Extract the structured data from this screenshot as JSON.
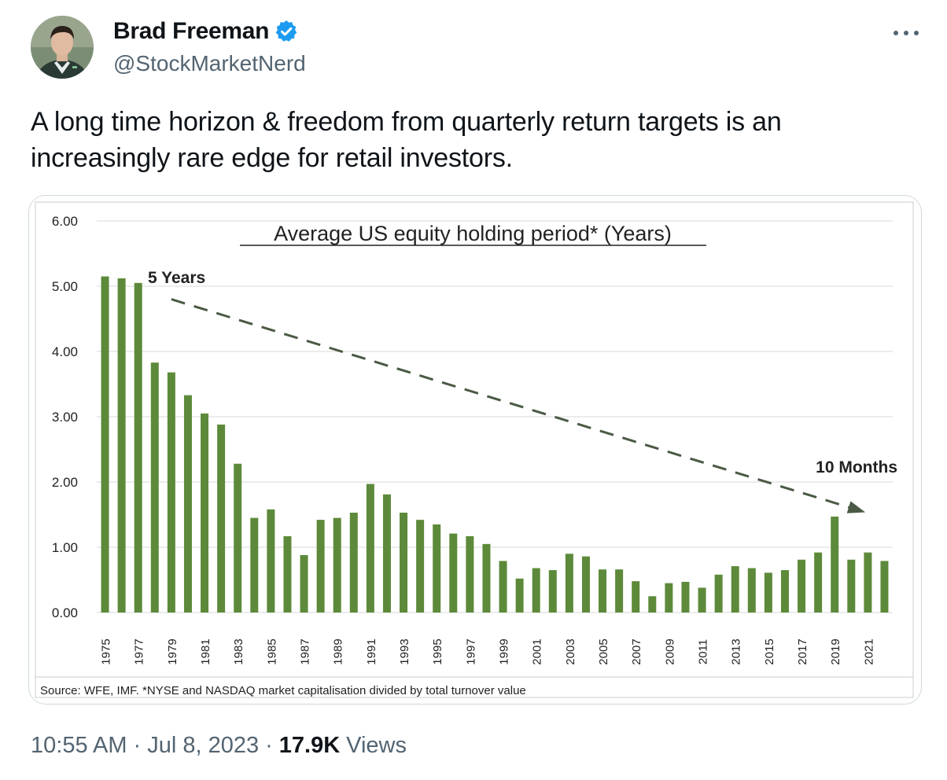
{
  "author": {
    "name": "Brad Freeman",
    "handle": "@StockMarketNerd",
    "verified": true,
    "badge_color": "#1d9bf0"
  },
  "tweet": {
    "text": "A long time horizon & freedom from quarterly return targets is an increasingly rare edge for retail investors.",
    "time": "10:55 AM",
    "date": "Jul 8, 2023",
    "views_count": "17.9K",
    "views_label": "Views",
    "separator": "·"
  },
  "icons": {
    "more": "more-horizontal-icon",
    "verified": "verified-badge-icon"
  },
  "chart_data": {
    "type": "bar",
    "title": "Average US equity holding period* (Years)",
    "source_note": "Source: WFE, IMF. *NYSE and NASDAQ market capitalisation divided by total turnover value",
    "annotations": [
      {
        "text": "5 Years"
      },
      {
        "text": "10 Months"
      }
    ],
    "trend_arrow": {
      "from": {
        "x": 1979,
        "y": 4.8
      },
      "to": {
        "x": 2020,
        "y": 1.55
      }
    },
    "bar_color": "#5d8a3a",
    "ylim": [
      0,
      6
    ],
    "yticks": [
      "0.00",
      "1.00",
      "2.00",
      "3.00",
      "4.00",
      "5.00",
      "6.00"
    ],
    "grid": true,
    "x_tick_labels": [
      "1975",
      "1977",
      "1979",
      "1981",
      "1983",
      "1985",
      "1987",
      "1989",
      "1991",
      "1993",
      "1995",
      "1997",
      "1999",
      "2001",
      "2003",
      "2005",
      "2007",
      "2009",
      "2011",
      "2013",
      "2015",
      "2017",
      "2019",
      "2021"
    ],
    "categories": [
      "1975",
      "1976",
      "1977",
      "1978",
      "1979",
      "1980",
      "1981",
      "1982",
      "1983",
      "1984",
      "1985",
      "1986",
      "1987",
      "1988",
      "1989",
      "1990",
      "1991",
      "1992",
      "1993",
      "1994",
      "1995",
      "1996",
      "1997",
      "1998",
      "1999",
      "2000",
      "2001",
      "2002",
      "2003",
      "2004",
      "2005",
      "2006",
      "2007",
      "2008",
      "2009",
      "2010",
      "2011",
      "2012",
      "2013",
      "2014",
      "2015",
      "2016",
      "2017",
      "2018",
      "2019",
      "2020",
      "2021",
      "2022"
    ],
    "values": [
      5.15,
      5.12,
      5.05,
      3.83,
      3.68,
      3.33,
      3.05,
      2.88,
      2.28,
      1.45,
      1.58,
      1.17,
      0.88,
      1.42,
      1.45,
      1.53,
      1.97,
      1.81,
      1.53,
      1.42,
      1.35,
      1.21,
      1.17,
      1.05,
      0.79,
      0.52,
      0.68,
      0.65,
      0.9,
      0.86,
      0.66,
      0.66,
      0.48,
      0.25,
      0.45,
      0.47,
      0.38,
      0.58,
      0.71,
      0.68,
      0.61,
      0.65,
      0.81,
      0.92,
      1.47,
      0.81,
      0.92,
      0.79
    ]
  }
}
